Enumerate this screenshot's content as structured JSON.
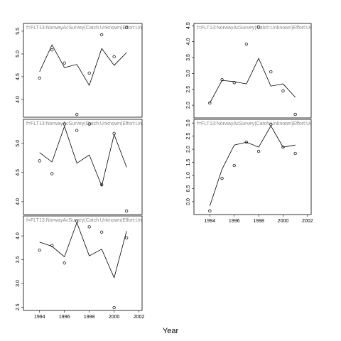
{
  "xlabel": "Year",
  "chart_data": [
    {
      "type": "line",
      "title": "f=FLT13:NorwayAcSurvey(Catch:Unknown)Effort:Un",
      "x": [
        1994,
        1995,
        1996,
        1997,
        1998,
        1999,
        2000,
        2001
      ],
      "xlim": [
        1992.7,
        2002.25
      ],
      "ylim": [
        3.61,
        5.67
      ],
      "yticks": [
        {
          "value": 4,
          "label": "4.0"
        },
        {
          "value": 4.5,
          "label": "4.5"
        },
        {
          "value": 5,
          "label": "5.0"
        },
        {
          "value": 5.5,
          "label": "5.5"
        }
      ],
      "series": [
        {
          "mode": "points",
          "color": "#000000",
          "values": [
            4.47,
            5.09,
            4.8,
            3.67,
            4.58,
            5.42,
            4.94,
            5.58
          ]
        },
        {
          "mode": "line",
          "color": "#000000",
          "values": [
            4.61,
            5.2,
            4.7,
            4.77,
            4.31,
            5.12,
            4.75,
            5.03
          ]
        }
      ]
    },
    {
      "type": "line",
      "title": "f=FLT13:NorwayAcSurvey(Catch:Unknown)Effort:Un",
      "x": [
        1994,
        1995,
        1996,
        1997,
        1998,
        1999,
        2000,
        2001
      ],
      "xlim": [
        1992.7,
        2002.25
      ],
      "ylim": [
        3.78,
        5.41
      ],
      "yticks": [
        {
          "value": 4,
          "label": "4.0"
        },
        {
          "value": 4.5,
          "label": "4.5"
        },
        {
          "value": 5,
          "label": "5.0"
        }
      ],
      "series": [
        {
          "mode": "points",
          "color": "#000000",
          "values": [
            4.7,
            4.48,
            5.33,
            5.22,
            5.33,
            4.29,
            5.17,
            3.84
          ]
        },
        {
          "mode": "line",
          "color": "#000000",
          "values": [
            4.84,
            4.68,
            5.29,
            4.66,
            4.8,
            4.27,
            5.15,
            4.59
          ]
        }
      ]
    },
    {
      "type": "line",
      "title": "f=FLT13:NorwayAcSurvey(Catch:Unknown)Effort:Un",
      "x": [
        1994,
        1995,
        1996,
        1997,
        1998,
        1999,
        2000,
        2001
      ],
      "xlim": [
        1992.7,
        2002.25
      ],
      "ylim": [
        2.43,
        4.42
      ],
      "yticks": [
        2.5,
        {
          "value": 3,
          "label": "3.0"
        },
        3.5,
        {
          "value": 4,
          "label": "4.0"
        }
      ],
      "xticks": [
        1994,
        1996,
        1998,
        2000,
        2002
      ],
      "series": [
        {
          "mode": "points",
          "color": "#000000",
          "values": [
            3.7,
            3.8,
            3.43,
            4.31,
            4.19,
            4.08,
            2.49,
            3.96
          ]
        },
        {
          "mode": "line",
          "color": "#000000",
          "values": [
            3.87,
            3.78,
            3.56,
            4.28,
            3.58,
            3.72,
            3.12,
            4.1
          ]
        }
      ]
    },
    {
      "type": "line",
      "title": "f=FLT13:NorwayAcSurvey(Catch:Unknown)Effort:Un",
      "x": [
        1994,
        1995,
        1996,
        1997,
        1998,
        1999,
        2000,
        2001
      ],
      "xlim": [
        1992.7,
        2002.3
      ],
      "ylim": [
        1.6,
        4.57
      ],
      "yticks": [
        {
          "value": 2,
          "label": "2.0"
        },
        2.5,
        {
          "value": 3,
          "label": "3.0"
        },
        3.5,
        {
          "value": 4,
          "label": "4.0"
        },
        4.5
      ],
      "series": [
        {
          "mode": "points",
          "color": "#000000",
          "values": [
            2.07,
            2.8,
            2.71,
            3.92,
            4.46,
            3.05,
            2.45,
            1.71
          ]
        },
        {
          "mode": "line",
          "color": "#000000",
          "values": [
            2.07,
            2.78,
            2.74,
            2.67,
            3.47,
            2.6,
            2.67,
            2.25
          ]
        }
      ]
    },
    {
      "type": "line",
      "title": "f=FLT13:NorwayAcSurvey(Catch:Unknown)Effort:Un",
      "x": [
        1994,
        1995,
        1996,
        1997,
        1998,
        1999,
        2000,
        2001
      ],
      "xlim": [
        1992.7,
        2002.3
      ],
      "ylim": [
        -0.49,
        3.14
      ],
      "yticks": [
        {
          "value": 0,
          "label": "0.0"
        },
        0.5,
        {
          "value": 1,
          "label": "1.0"
        },
        1.5,
        {
          "value": 2,
          "label": "2.0"
        },
        2.5,
        {
          "value": 3,
          "label": "3.0"
        }
      ],
      "xticks": [
        1994,
        1996,
        1998,
        2000,
        2002
      ],
      "series": [
        {
          "mode": "points",
          "color": "#000000",
          "values": [
            -0.35,
            0.89,
            1.38,
            2.27,
            1.92,
            2.95,
            2.08,
            1.84
          ]
        },
        {
          "mode": "line",
          "color": "#000000",
          "values": [
            -0.16,
            1.24,
            2.16,
            2.27,
            2.08,
            2.89,
            2.08,
            2.16
          ]
        }
      ]
    }
  ]
}
